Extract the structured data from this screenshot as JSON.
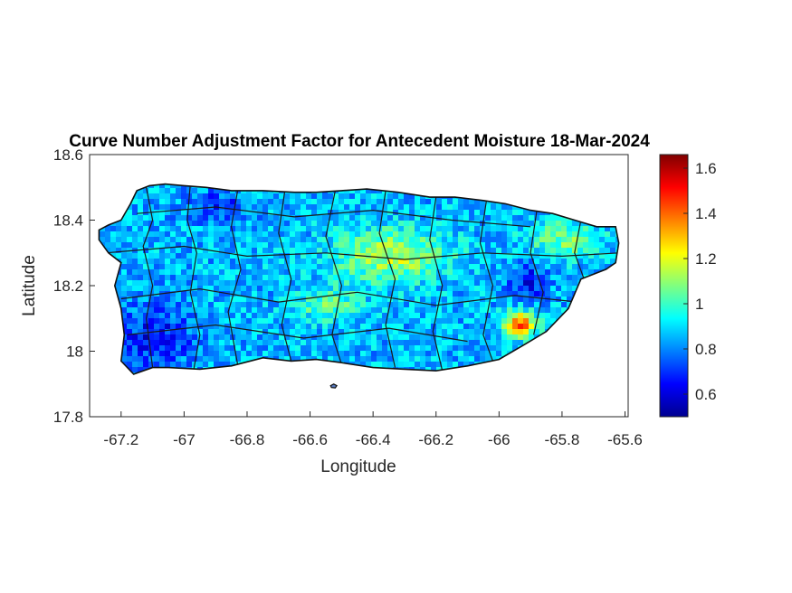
{
  "chart_data": {
    "type": "heatmap",
    "title": "Curve Number Adjustment Factor for Antecedent Moisture 18-Mar-2024",
    "xlabel": "Longitude",
    "ylabel": "Latitude",
    "xlim": [
      -67.3,
      -65.59
    ],
    "ylim": [
      17.8,
      18.6
    ],
    "xticks": [
      -67.2,
      -67,
      -66.8,
      -66.6,
      -66.4,
      -66.2,
      -66,
      -65.8,
      -65.6
    ],
    "xtick_labels": [
      "-67.2",
      "-67",
      "-66.8",
      "-66.6",
      "-66.4",
      "-66.2",
      "-66",
      "-65.8",
      "-65.6"
    ],
    "yticks": [
      17.8,
      18,
      18.2,
      18.4,
      18.6
    ],
    "ytick_labels": [
      "17.8",
      "18",
      "18.2",
      "18.4",
      "18.6"
    ],
    "colorbar": {
      "colormap": "jet",
      "range": [
        0.5,
        1.66
      ],
      "ticks": [
        0.6,
        0.8,
        1,
        1.2,
        1.4,
        1.6
      ],
      "tick_labels": [
        "0.6",
        "0.8",
        "1",
        "1.2",
        "1.4",
        "1.6"
      ]
    },
    "region": "Puerto Rico",
    "typical_value": 0.85,
    "grid": false
  },
  "colors": {
    "background": "#ffffff",
    "axes": "#262626",
    "boundaries": "#1a1a1a"
  }
}
